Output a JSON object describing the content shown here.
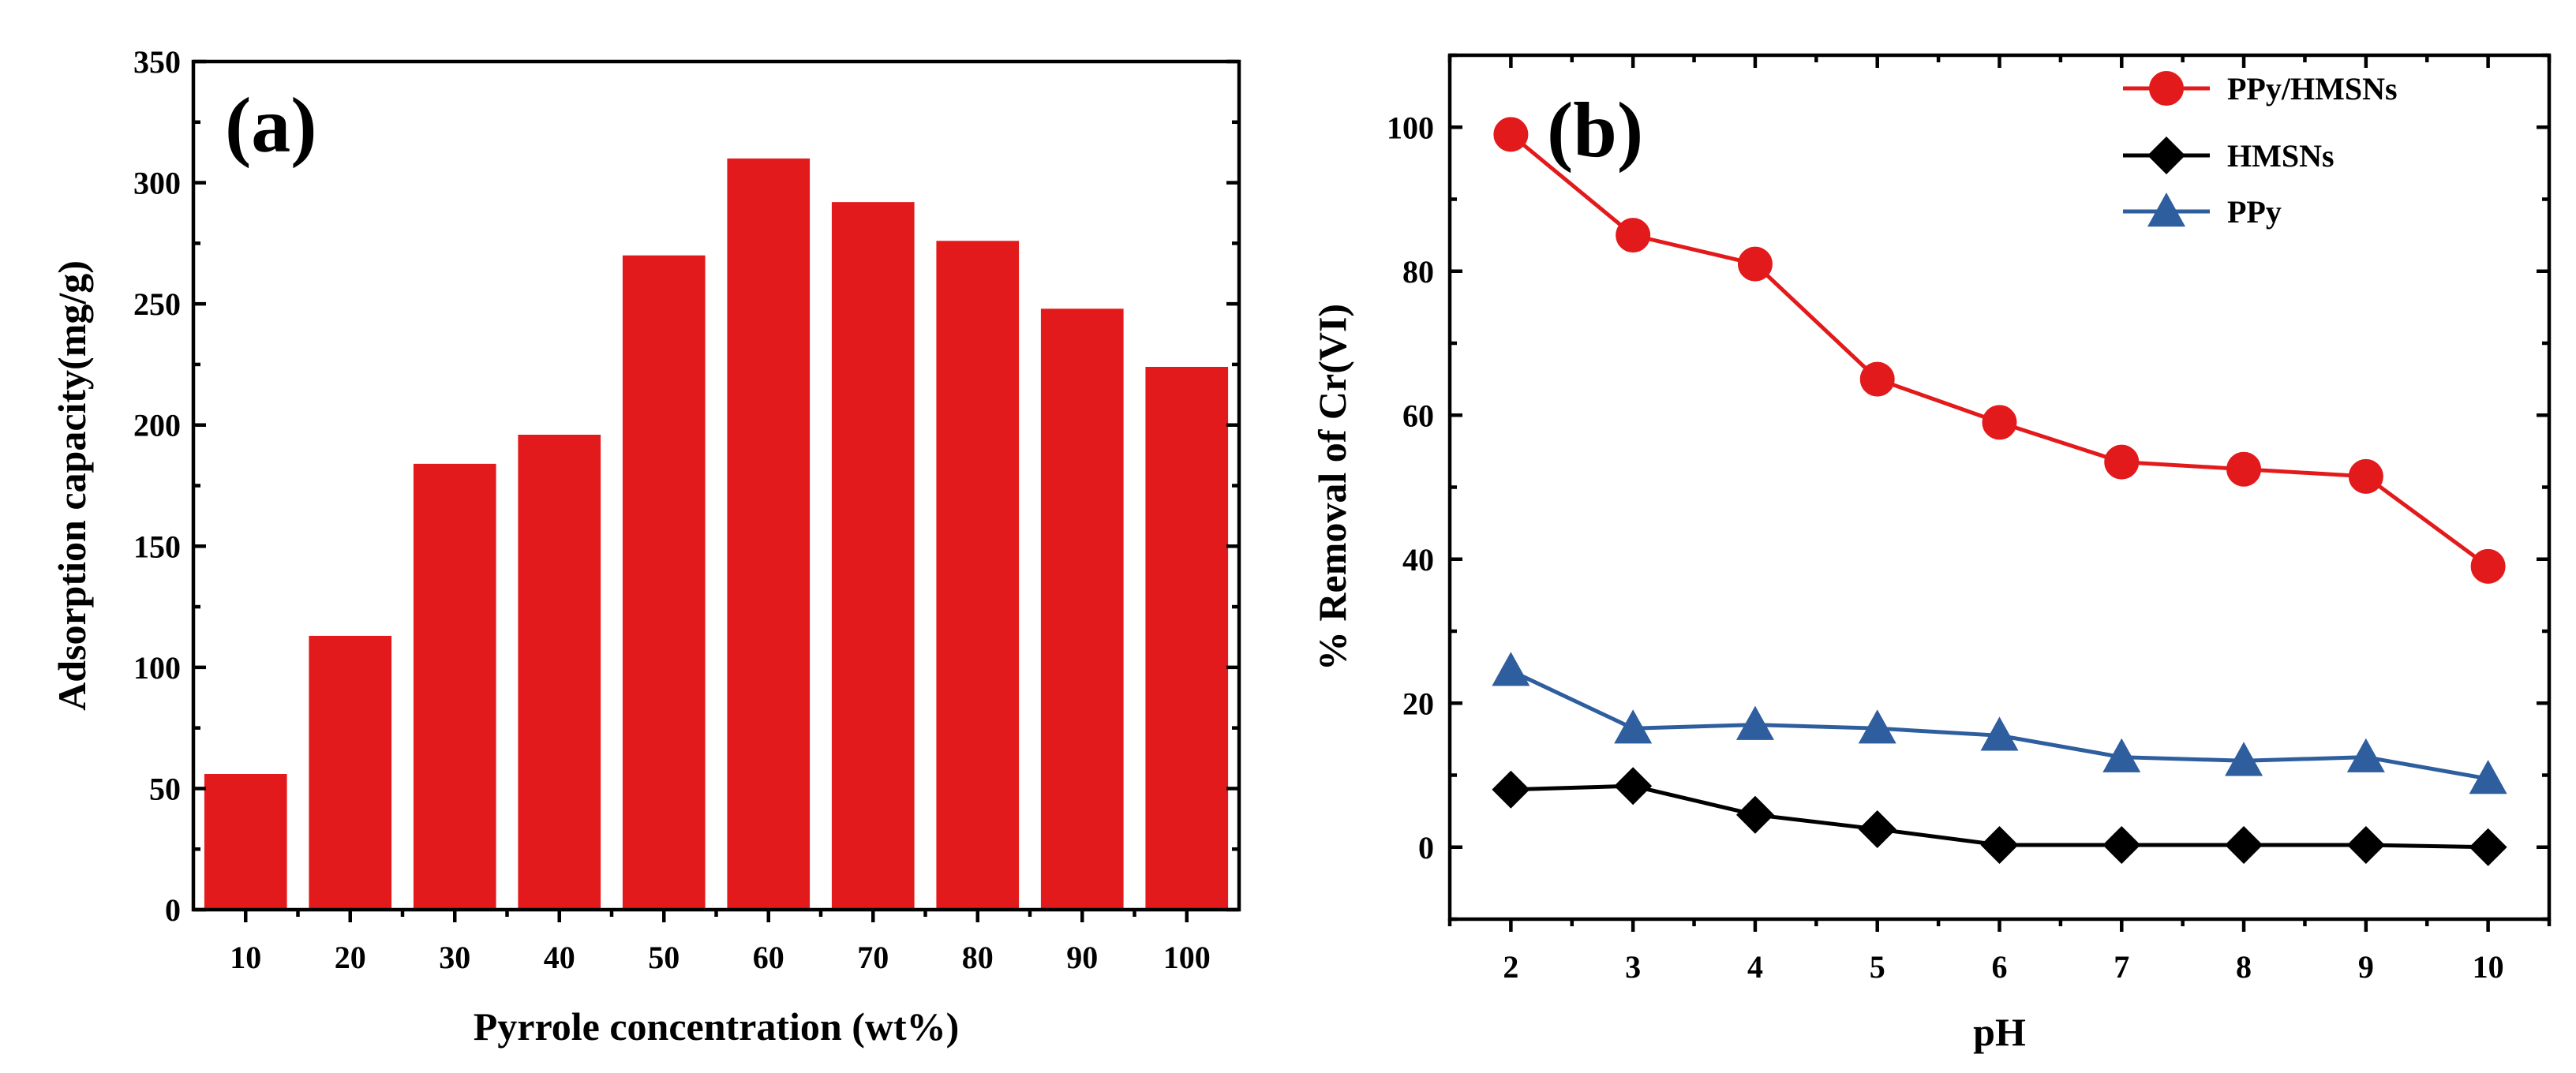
{
  "chart_data": [
    {
      "type": "bar",
      "panel_label": "(a)",
      "title": "",
      "xlabel": "Pyrrole concentration (wt%)",
      "ylabel": "Adsorption capacity(mg/g)",
      "categories": [
        "10",
        "20",
        "30",
        "40",
        "50",
        "60",
        "70",
        "80",
        "90",
        "100"
      ],
      "values": [
        56,
        113,
        184,
        196,
        270,
        310,
        292,
        276,
        248,
        224
      ],
      "ylim": [
        0,
        350
      ],
      "yticks": [
        "0",
        "50",
        "100",
        "150",
        "200",
        "250",
        "300",
        "350"
      ],
      "bar_color": "#E31A1C",
      "grid": false
    },
    {
      "type": "line",
      "panel_label": "(b)",
      "title": "",
      "xlabel": "pH",
      "ylabel": "% Removal of Cr(VI)",
      "x": [
        2,
        3,
        4,
        5,
        6,
        7,
        8,
        9,
        10
      ],
      "xticks": [
        "2",
        "3",
        "4",
        "5",
        "6",
        "7",
        "8",
        "9",
        "10"
      ],
      "xlim": [
        1.5,
        10.5
      ],
      "ylim": [
        -10,
        110
      ],
      "yticks": [
        "0",
        "20",
        "40",
        "60",
        "80",
        "100"
      ],
      "legend_position": "top-right",
      "grid": false,
      "series": [
        {
          "name": "PPy/HMSNs",
          "marker": "circle",
          "color": "#E31A1C",
          "values": [
            99,
            85,
            81,
            65,
            59,
            53.5,
            52.5,
            51.5,
            39
          ]
        },
        {
          "name": "HMSNs",
          "marker": "diamond",
          "color": "#000000",
          "values": [
            8,
            8.5,
            4.5,
            2.5,
            0.3,
            0.3,
            0.3,
            0.3,
            0
          ]
        },
        {
          "name": "PPy",
          "marker": "triangle",
          "color": "#2E5E9E",
          "values": [
            24.5,
            16.5,
            17,
            16.5,
            15.5,
            12.5,
            12,
            12.5,
            9.5
          ]
        }
      ]
    }
  ]
}
